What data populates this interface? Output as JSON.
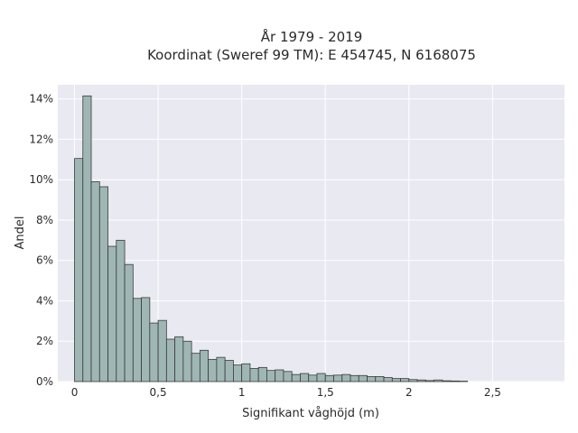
{
  "chart_data": {
    "type": "bar",
    "title_line1": "År 1979 - 2019",
    "title_line2": "Koordinat (Sweref 99 TM): E 454745, N 6168075",
    "xlabel": "Signifikant våghöjd (m)",
    "ylabel": "Andel",
    "xlim": [
      -0.1,
      2.93
    ],
    "ylim": [
      0,
      0.147
    ],
    "x_ticks": [
      0,
      0.5,
      1,
      1.5,
      2,
      2.5
    ],
    "x_tick_labels": [
      "0",
      "0,5",
      "1",
      "1,5",
      "2",
      "2,5"
    ],
    "y_ticks": [
      0,
      0.02,
      0.04,
      0.06,
      0.08,
      0.1,
      0.12,
      0.14
    ],
    "y_tick_labels": [
      "0%",
      "2%",
      "4%",
      "6%",
      "8%",
      "10%",
      "12%",
      "14%"
    ],
    "bin_width": 0.05,
    "bin_start": 0.0,
    "values": [
      0.1105,
      0.1415,
      0.099,
      0.0965,
      0.067,
      0.07,
      0.058,
      0.0412,
      0.0416,
      0.029,
      0.0303,
      0.021,
      0.0222,
      0.02,
      0.014,
      0.0155,
      0.011,
      0.012,
      0.0105,
      0.0082,
      0.0088,
      0.0065,
      0.007,
      0.0055,
      0.0058,
      0.005,
      0.0035,
      0.004,
      0.0032,
      0.004,
      0.003,
      0.0032,
      0.0035,
      0.003,
      0.003,
      0.0025,
      0.0025,
      0.002,
      0.0015,
      0.0015,
      0.001,
      0.0008,
      0.0005,
      0.0008,
      0.0004,
      0.0003,
      0.0002
    ],
    "grid": true,
    "colors": {
      "plot_background": "#e9e9f2",
      "bar_fill": "#9fb7b4",
      "bar_stroke": "#3a3a3a",
      "grid": "#ffffff"
    }
  }
}
